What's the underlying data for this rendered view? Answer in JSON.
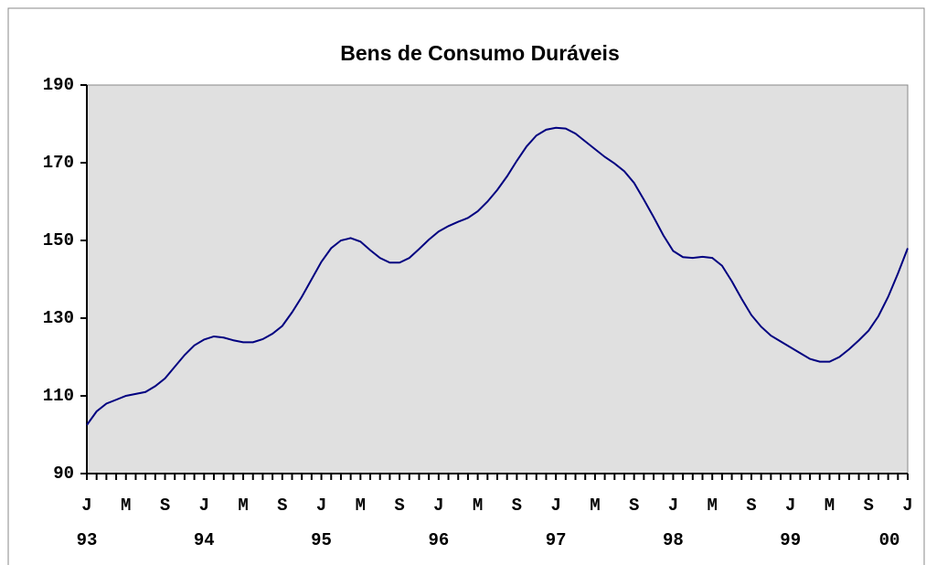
{
  "chart_data": {
    "type": "line",
    "title": "Bens de Consumo Duráveis",
    "categories": [
      "J",
      null,
      null,
      null,
      "M",
      null,
      null,
      null,
      "S",
      null,
      null,
      null,
      "J",
      null,
      null,
      null,
      "M",
      null,
      null,
      null,
      "S",
      null,
      null,
      null,
      "J",
      null,
      null,
      null,
      "M",
      null,
      null,
      null,
      "S",
      null,
      null,
      null,
      "J",
      null,
      null,
      null,
      "M",
      null,
      null,
      null,
      "S",
      null,
      null,
      null,
      "J",
      null,
      null,
      null,
      "M",
      null,
      null,
      null,
      "S",
      null,
      null,
      null,
      "J",
      null,
      null,
      null,
      "M",
      null,
      null,
      null,
      "S",
      null,
      null,
      null,
      "J",
      null,
      null,
      null,
      "M",
      null,
      null,
      null,
      "S",
      null,
      null,
      null,
      "J"
    ],
    "year_labels": [
      "93",
      null,
      null,
      null,
      null,
      null,
      null,
      null,
      null,
      null,
      null,
      null,
      "94",
      null,
      null,
      null,
      null,
      null,
      null,
      null,
      null,
      null,
      null,
      null,
      "95",
      null,
      null,
      null,
      null,
      null,
      null,
      null,
      null,
      null,
      null,
      null,
      "96",
      null,
      null,
      null,
      null,
      null,
      null,
      null,
      null,
      null,
      null,
      null,
      "97",
      null,
      null,
      null,
      null,
      null,
      null,
      null,
      null,
      null,
      null,
      null,
      "98",
      null,
      null,
      null,
      null,
      null,
      null,
      null,
      null,
      null,
      null,
      null,
      "99",
      null,
      null,
      null,
      null,
      null,
      null,
      null,
      null,
      null,
      null,
      null,
      "00"
    ],
    "values": [
      102.5,
      106,
      108,
      109,
      110,
      110.5,
      111,
      112.5,
      114.5,
      117.5,
      120.5,
      123,
      124.5,
      125.3,
      125,
      124.3,
      123.8,
      123.8,
      124.6,
      126,
      128,
      131.5,
      135.5,
      140,
      144.5,
      148,
      150,
      150.6,
      149.7,
      147.5,
      145.5,
      144.3,
      144.3,
      145.5,
      147.8,
      150.2,
      152.3,
      153.7,
      154.8,
      155.8,
      157.5,
      160,
      163,
      166.5,
      170.5,
      174.2,
      177,
      178.5,
      179,
      178.8,
      177.5,
      175.5,
      173.5,
      171.5,
      169.8,
      167.8,
      164.8,
      160.5,
      156,
      151.3,
      147.3,
      145.7,
      145.5,
      145.8,
      145.5,
      143.5,
      139.5,
      135,
      130.8,
      127.8,
      125.5,
      124,
      122.5,
      121,
      119.5,
      118.8,
      118.8,
      120,
      122,
      124.3,
      126.8,
      130.5,
      135.5,
      141.5,
      148
    ],
    "color": "#000080",
    "ylim": [
      90,
      190
    ],
    "yticks": [
      90,
      110,
      130,
      150,
      170,
      190
    ],
    "grid": false
  }
}
